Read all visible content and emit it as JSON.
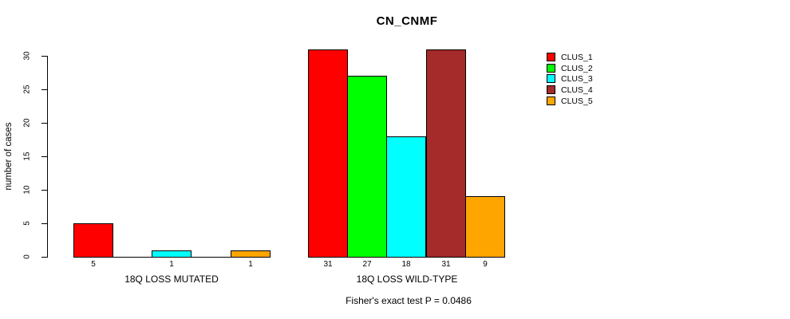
{
  "chart_data": {
    "type": "bar",
    "title": "CN_CNMF",
    "ylabel": "number of cases",
    "xlabel": "",
    "yticks": [
      0,
      5,
      10,
      15,
      20,
      25,
      30
    ],
    "ylim": [
      0,
      31
    ],
    "grid": false,
    "legend_position": "right",
    "series": [
      "CLUS_1",
      "CLUS_2",
      "CLUS_3",
      "CLUS_4",
      "CLUS_5"
    ],
    "colors": [
      "#FF0000",
      "#00FF00",
      "#00FFFF",
      "#A52A2A",
      "#FFA500"
    ],
    "groups": [
      {
        "label": "18Q LOSS MUTATED",
        "values": [
          5,
          0,
          1,
          0,
          1
        ]
      },
      {
        "label": "18Q LOSS WILD-TYPE",
        "values": [
          31,
          27,
          18,
          31,
          9
        ]
      }
    ],
    "footnote": "Fisher's exact test P = 0.0486"
  }
}
